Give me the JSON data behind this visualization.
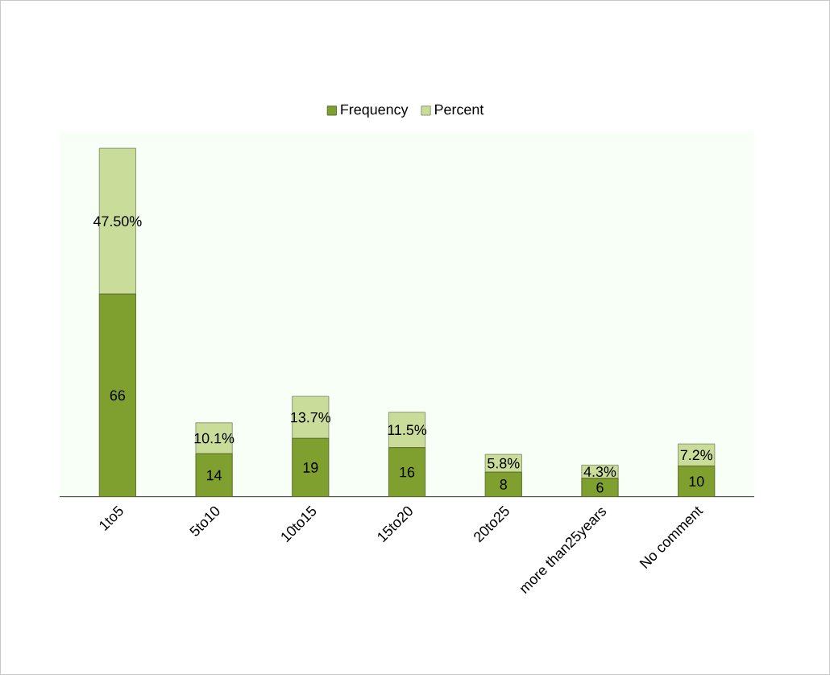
{
  "chart_data": {
    "type": "bar",
    "stacked": true,
    "legend": "top",
    "categories": [
      "1to5",
      "5to10",
      "10to15",
      "15to20",
      "20to25",
      "more than25years",
      "No comment"
    ],
    "series": [
      {
        "name": "Frequency",
        "color": "#7f9f2f",
        "values": [
          66,
          14,
          19,
          16,
          8,
          6,
          10
        ],
        "value_labels": [
          "66",
          "14",
          "19",
          "16",
          "8",
          "6",
          "10"
        ]
      },
      {
        "name": "Percent",
        "color": "#c9dc9a",
        "values": [
          47.5,
          10.1,
          13.7,
          11.5,
          5.8,
          4.3,
          7.2
        ],
        "value_labels": [
          "47.50%",
          "10.1%",
          "13.7%",
          "11.5%",
          "5.8%",
          "4.3%",
          "7.2%"
        ]
      }
    ]
  }
}
